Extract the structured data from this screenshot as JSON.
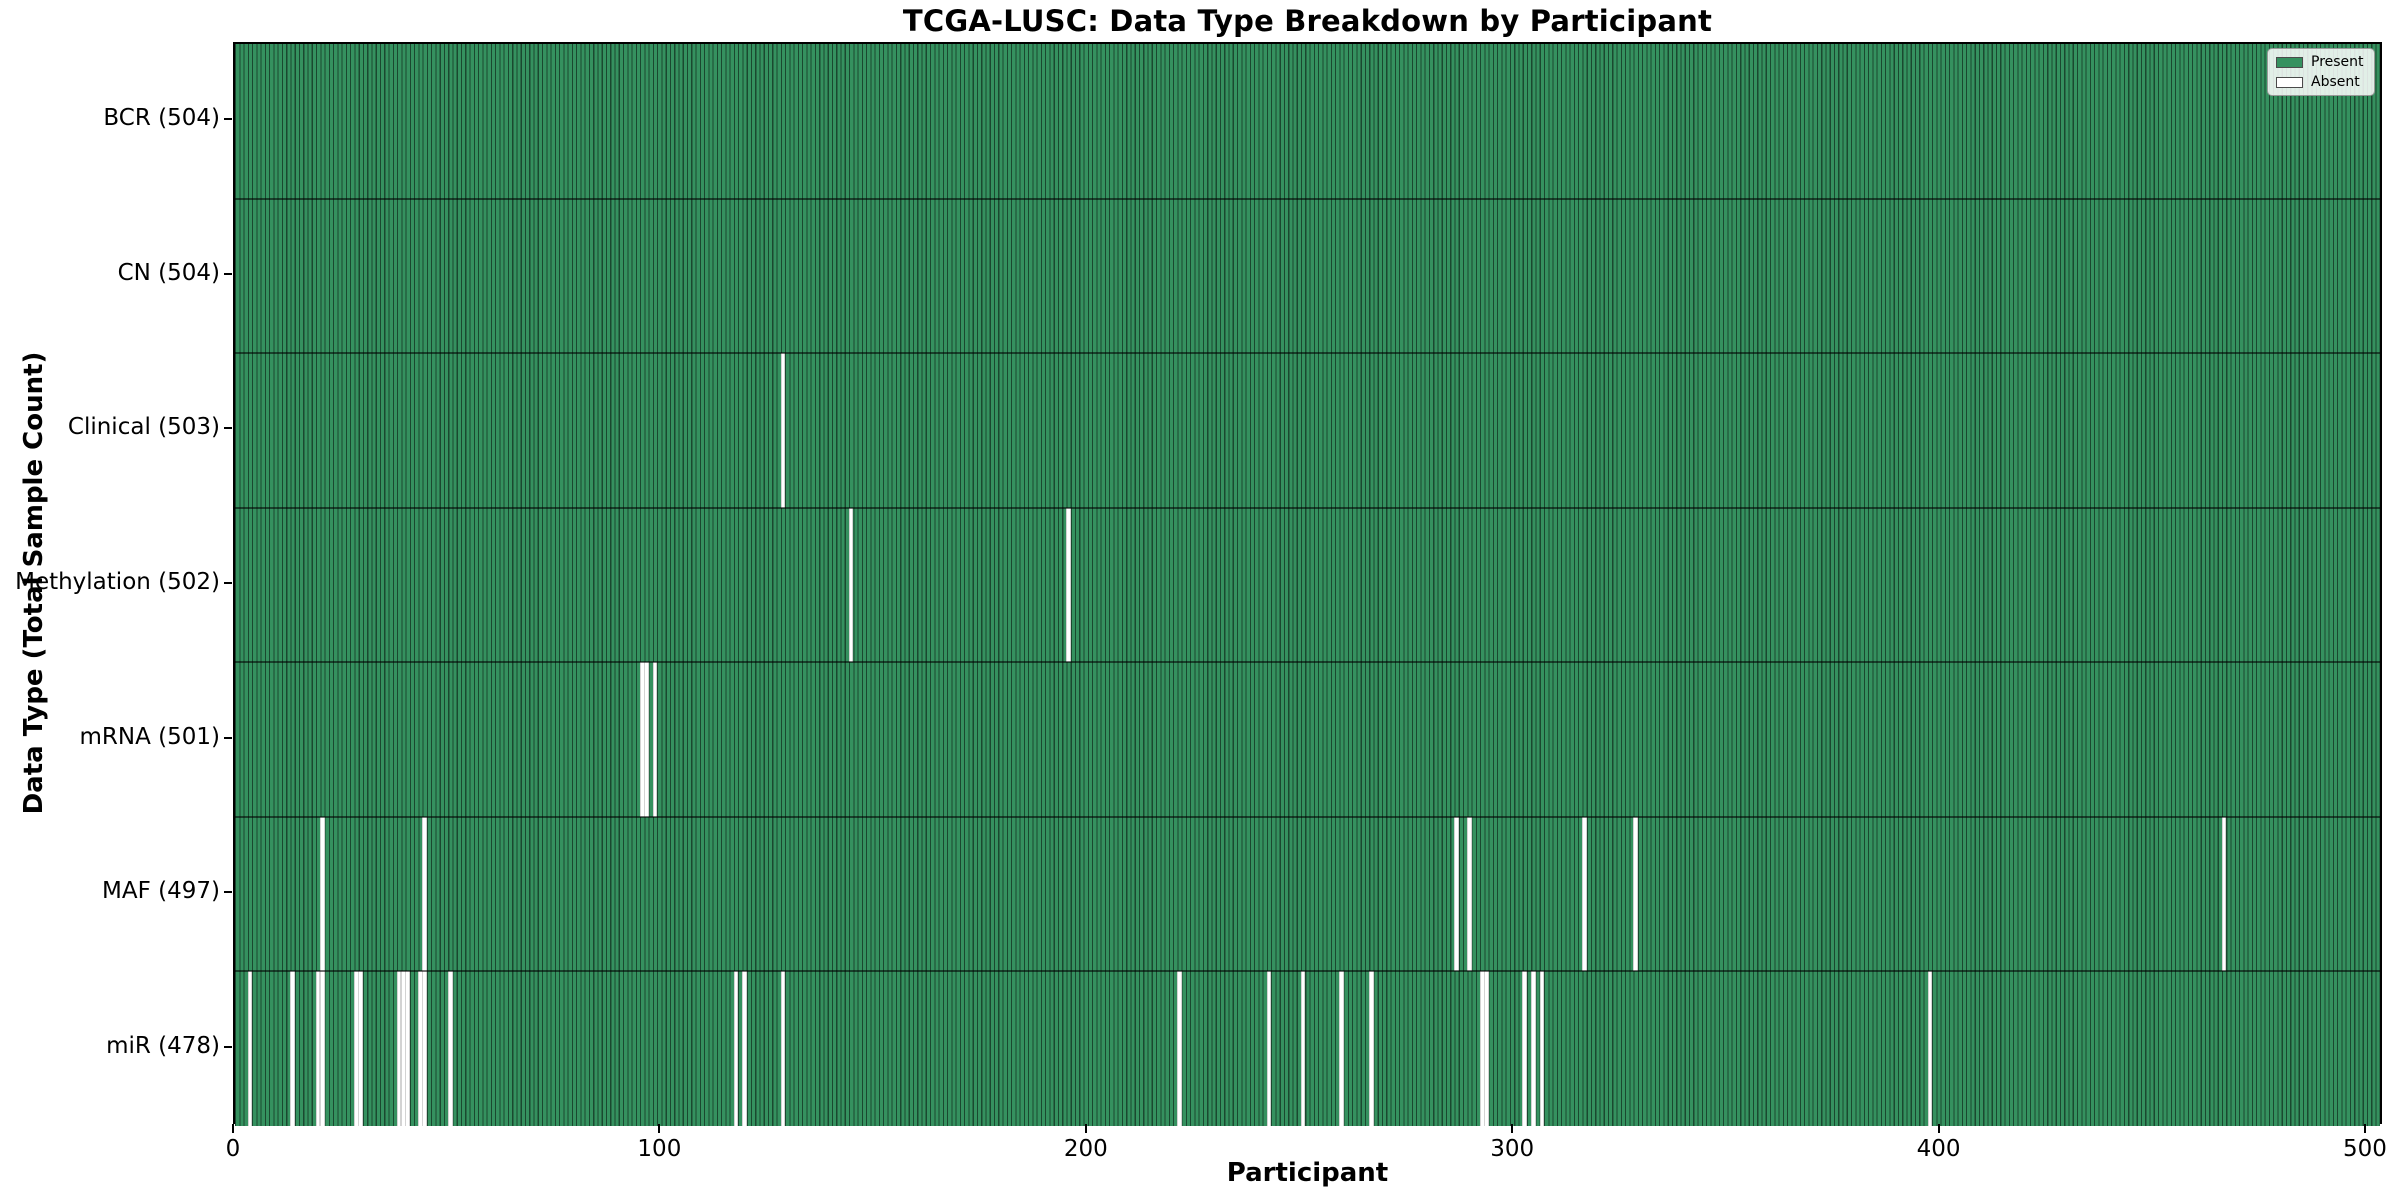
{
  "title": "TCGA-LUSC: Data Type Breakdown by Participant",
  "chart_data": {
    "type": "heatmap",
    "title": "TCGA-LUSC: Data Type Breakdown by Participant",
    "xlabel": "Participant",
    "ylabel": "Data Type (Total Sample Count)",
    "x_ticks": [
      0,
      100,
      200,
      300,
      400,
      500
    ],
    "x_range": [
      0,
      504
    ],
    "n_participants": 504,
    "grid": false,
    "colors": {
      "present": "#35915f",
      "absent": "#ffffff",
      "bar_edge": "rgba(0,0,0,0.5)"
    },
    "legend": {
      "position": "upper right",
      "entries": [
        {
          "label": "Present",
          "color": "#35915f"
        },
        {
          "label": "Absent",
          "color": "#ffffff"
        }
      ]
    },
    "rows": [
      {
        "label": "BCR (504)",
        "total": 504,
        "absent": []
      },
      {
        "label": "CN (504)",
        "total": 504,
        "absent": []
      },
      {
        "label": "Clinical (503)",
        "total": 503,
        "absent": [
          128
        ]
      },
      {
        "label": "Methylation (502)",
        "total": 502,
        "absent": [
          144,
          195
        ]
      },
      {
        "label": "mRNA (501)",
        "total": 501,
        "absent": [
          95,
          96,
          98
        ]
      },
      {
        "label": "MAF (497)",
        "total": 497,
        "absent": [
          20,
          44,
          286,
          289,
          316,
          328,
          466
        ]
      },
      {
        "label": "miR (478)",
        "total": 478,
        "absent": [
          3,
          13,
          19,
          20,
          28,
          29,
          38,
          39,
          40,
          43,
          44,
          50,
          117,
          119,
          128,
          221,
          242,
          250,
          259,
          266,
          292,
          293,
          302,
          304,
          306,
          397
        ]
      }
    ]
  }
}
